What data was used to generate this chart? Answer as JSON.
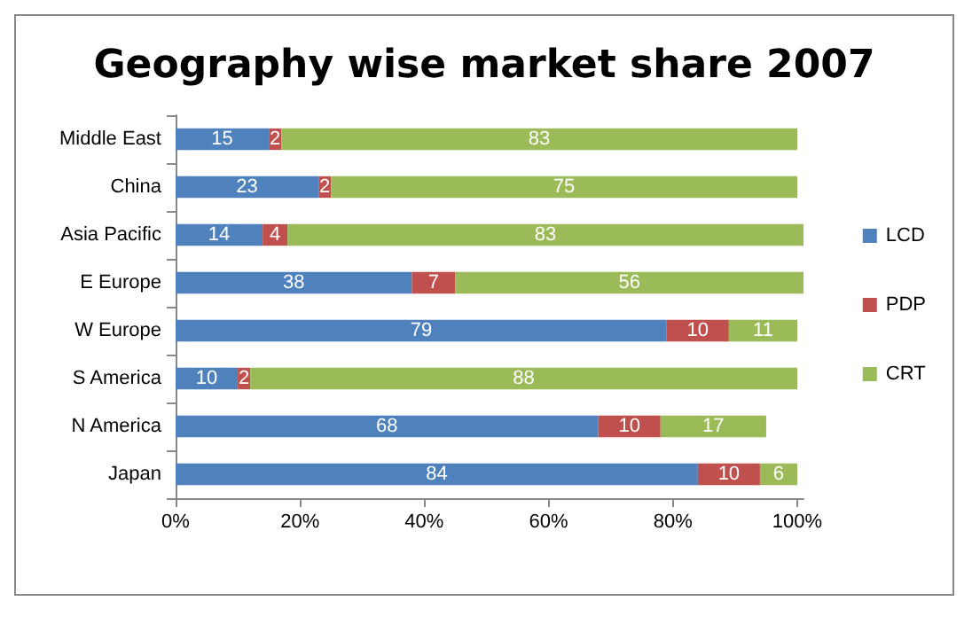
{
  "chart_data": {
    "type": "bar",
    "title": "Geography wise market share 2007",
    "orientation": "horizontal",
    "stacked": true,
    "categories": [
      "Middle East",
      "China",
      "Asia Pacific",
      "E Europe",
      "W Europe",
      "S America",
      "N America",
      "Japan"
    ],
    "series": [
      {
        "name": "LCD",
        "color": "#4f81bd",
        "values": [
          15,
          23,
          14,
          38,
          79,
          10,
          68,
          84
        ]
      },
      {
        "name": "PDP",
        "color": "#c0504d",
        "values": [
          2,
          2,
          4,
          7,
          10,
          2,
          10,
          10
        ]
      },
      {
        "name": "CRT",
        "color": "#9bbb59",
        "values": [
          83,
          75,
          83,
          56,
          11,
          88,
          17,
          6
        ]
      }
    ],
    "data_labels": true,
    "xlim": [
      0,
      101
    ],
    "xticks": [
      {
        "value": 0,
        "label": "0%"
      },
      {
        "value": 20,
        "label": "20%"
      },
      {
        "value": 40,
        "label": "40%"
      },
      {
        "value": 60,
        "label": "60%"
      },
      {
        "value": 80,
        "label": "80%"
      },
      {
        "value": 100,
        "label": "100%"
      }
    ],
    "legend": "right",
    "grid": false
  }
}
